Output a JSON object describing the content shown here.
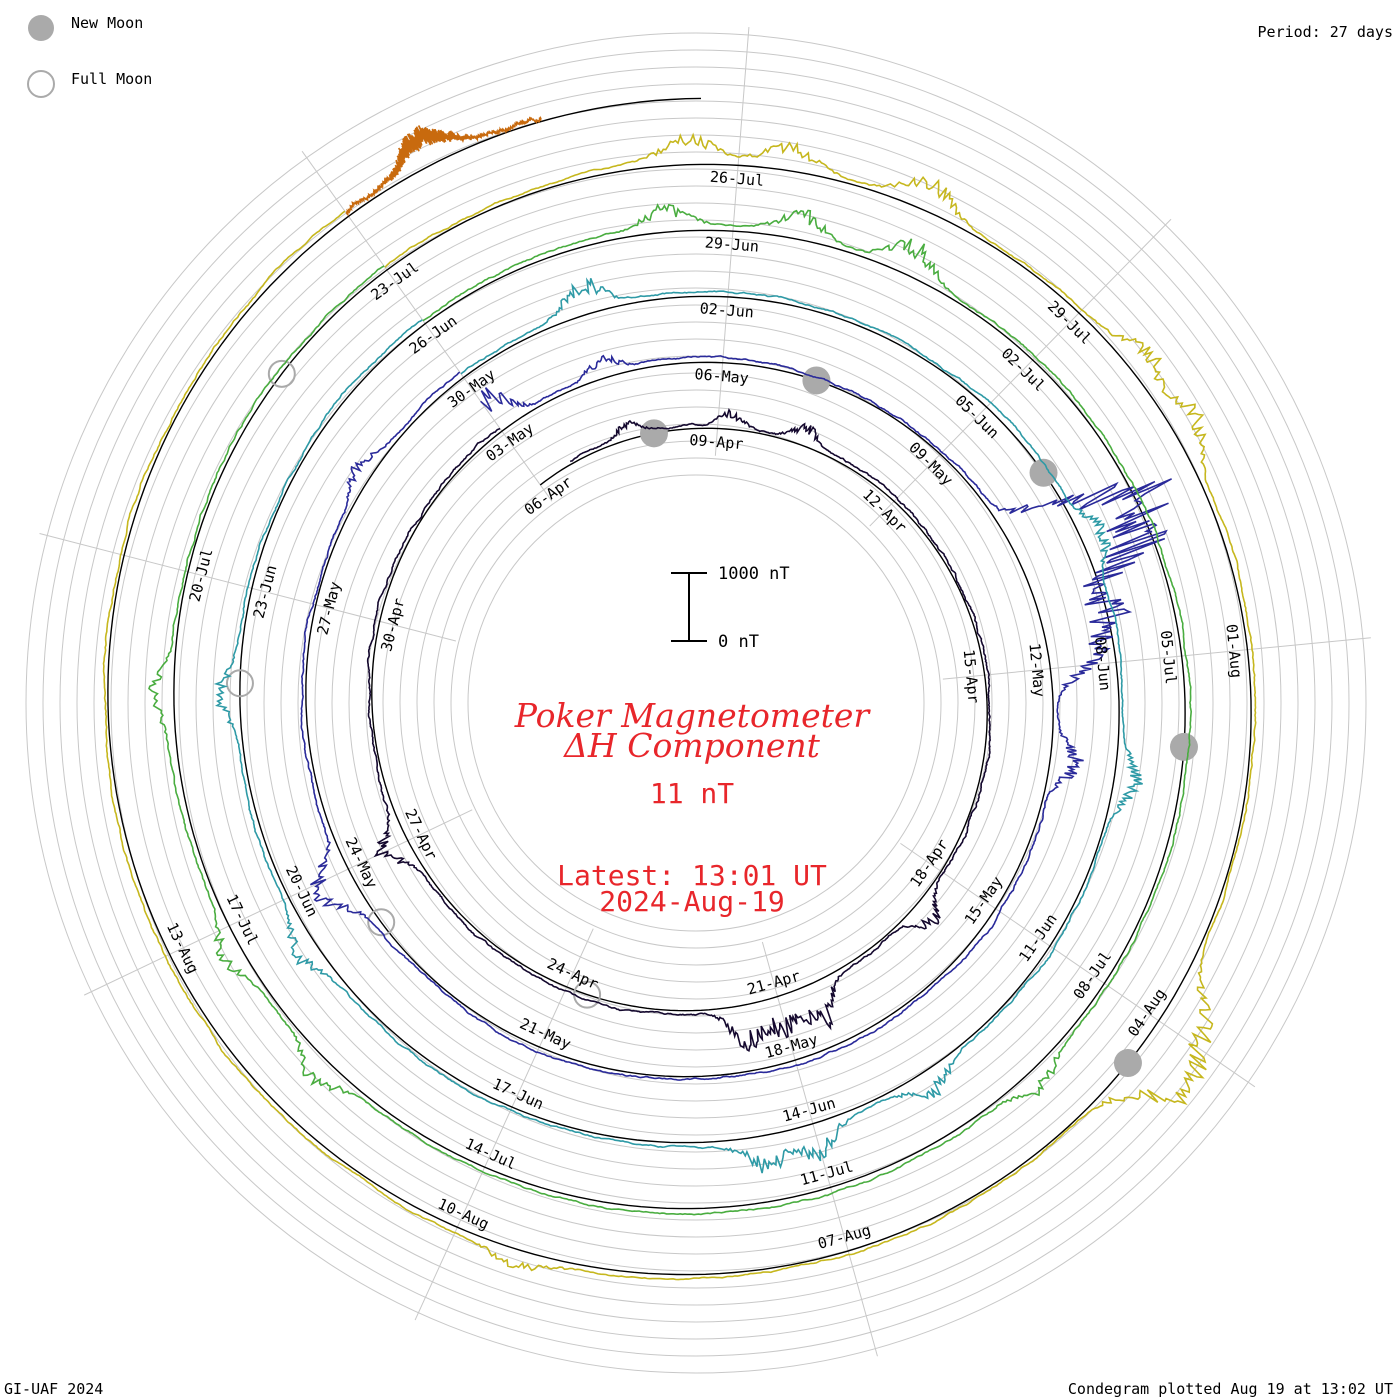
{
  "header": {
    "legend_new_moon": "New Moon",
    "legend_full_moon": "Full Moon",
    "period": "Period: 27 days"
  },
  "footer": {
    "credit": "GI-UAF 2024",
    "plotted": "Condegram plotted Aug 19 at 13:02 UT"
  },
  "center": {
    "title_line1": "Poker Magnetometer",
    "title_line2": "ΔH Component",
    "value": "11 nT",
    "latest_time": "Latest: 13:01 UT",
    "latest_date": "2024-Aug-19",
    "scale_top": "1000 nT",
    "scale_bottom": "0 nT"
  },
  "colors": {
    "moon_fill": "#aaaaaa",
    "title": "#e8262b",
    "grid": "#c8c8c8",
    "axis": "#000000",
    "cycles": [
      "#14082e",
      "#2a2a9a",
      "#2e9aa6",
      "#4aad40",
      "#c6b71e",
      "#c86a0e",
      "#b51a10"
    ]
  },
  "chart_data": {
    "type": "line",
    "title": "Poker Magnetometer ΔH Component",
    "period_days": 27,
    "y_scale_nT": [
      0,
      1000
    ],
    "current_value_nT": 11,
    "date_labels": [
      {
        "text": "06-Apr",
        "cycle": 0,
        "day": 0
      },
      {
        "text": "09-Apr",
        "cycle": 0,
        "day": 3
      },
      {
        "text": "12-Apr",
        "cycle": 0,
        "day": 6
      },
      {
        "text": "15-Apr",
        "cycle": 0,
        "day": 9
      },
      {
        "text": "18-Apr",
        "cycle": 0,
        "day": 12
      },
      {
        "text": "21-Apr",
        "cycle": 0,
        "day": 15
      },
      {
        "text": "24-Apr",
        "cycle": 0,
        "day": 18
      },
      {
        "text": "27-Apr",
        "cycle": 0,
        "day": 21
      },
      {
        "text": "30-Apr",
        "cycle": 0,
        "day": 24
      },
      {
        "text": "03-May",
        "cycle": 1,
        "day": 0
      },
      {
        "text": "06-May",
        "cycle": 1,
        "day": 3
      },
      {
        "text": "09-May",
        "cycle": 1,
        "day": 6
      },
      {
        "text": "12-May",
        "cycle": 1,
        "day": 9
      },
      {
        "text": "15-May",
        "cycle": 1,
        "day": 12
      },
      {
        "text": "18-May",
        "cycle": 1,
        "day": 15
      },
      {
        "text": "21-May",
        "cycle": 1,
        "day": 18
      },
      {
        "text": "24-May",
        "cycle": 1,
        "day": 21
      },
      {
        "text": "27-May",
        "cycle": 1,
        "day": 24
      },
      {
        "text": "30-May",
        "cycle": 2,
        "day": 0
      },
      {
        "text": "02-Jun",
        "cycle": 2,
        "day": 3
      },
      {
        "text": "05-Jun",
        "cycle": 2,
        "day": 6
      },
      {
        "text": "08-Jun",
        "cycle": 2,
        "day": 9
      },
      {
        "text": "11-Jun",
        "cycle": 2,
        "day": 12
      },
      {
        "text": "14-Jun",
        "cycle": 2,
        "day": 15
      },
      {
        "text": "17-Jun",
        "cycle": 2,
        "day": 18
      },
      {
        "text": "20-Jun",
        "cycle": 2,
        "day": 21
      },
      {
        "text": "23-Jun",
        "cycle": 2,
        "day": 24
      },
      {
        "text": "26-Jun",
        "cycle": 3,
        "day": 0
      },
      {
        "text": "29-Jun",
        "cycle": 3,
        "day": 3
      },
      {
        "text": "02-Jul",
        "cycle": 3,
        "day": 6
      },
      {
        "text": "05-Jul",
        "cycle": 3,
        "day": 9
      },
      {
        "text": "08-Jul",
        "cycle": 3,
        "day": 12
      },
      {
        "text": "11-Jul",
        "cycle": 3,
        "day": 15
      },
      {
        "text": "14-Jul",
        "cycle": 3,
        "day": 18
      },
      {
        "text": "17-Jul",
        "cycle": 3,
        "day": 21
      },
      {
        "text": "20-Jul",
        "cycle": 3,
        "day": 24
      },
      {
        "text": "23-Jul",
        "cycle": 4,
        "day": 0
      },
      {
        "text": "26-Jul",
        "cycle": 4,
        "day": 3
      },
      {
        "text": "29-Jul",
        "cycle": 4,
        "day": 6
      },
      {
        "text": "01-Aug",
        "cycle": 4,
        "day": 9
      },
      {
        "text": "04-Aug",
        "cycle": 4,
        "day": 12
      },
      {
        "text": "07-Aug",
        "cycle": 4,
        "day": 15
      },
      {
        "text": "10-Aug",
        "cycle": 4,
        "day": 18
      },
      {
        "text": "13-Aug",
        "cycle": 4,
        "day": 21
      }
    ],
    "new_moons": [
      {
        "cycle": 0,
        "day": 2.0
      },
      {
        "cycle": 1,
        "day": 4.2
      },
      {
        "cycle": 2,
        "day": 6.9
      },
      {
        "cycle": 3,
        "day": 9.8
      },
      {
        "cycle": 4,
        "day": 12.4
      }
    ],
    "full_moons": [
      {
        "cycle": 0,
        "day": 17.7
      },
      {
        "cycle": 1,
        "day": 20.3
      },
      {
        "cycle": 2,
        "day": 23.1
      },
      {
        "cycle": 3,
        "day": 25.8
      }
    ],
    "cycles": [
      {
        "start": "2024-04-05",
        "day_start": 0.6,
        "day_end": 27,
        "baseline_nT": 50,
        "disturbances": [
          [
            1.6,
            150
          ],
          [
            3.2,
            180
          ],
          [
            4.3,
            200
          ],
          [
            12.6,
            330
          ],
          [
            14.5,
            500
          ],
          [
            15.0,
            420
          ],
          [
            15.5,
            450
          ],
          [
            21.0,
            320
          ]
        ]
      },
      {
        "start": "2024-05-02",
        "day_start": 0,
        "day_end": 27,
        "baseline_nT": 60,
        "disturbances": [
          [
            0.1,
            450
          ],
          [
            1.5,
            200
          ],
          [
            7.4,
            1300
          ],
          [
            7.7,
            1400
          ],
          [
            8.0,
            1100
          ],
          [
            8.5,
            900
          ],
          [
            8.9,
            600
          ],
          [
            10.1,
            350
          ],
          [
            20.8,
            280
          ],
          [
            21.0,
            300
          ],
          [
            25.5,
            180
          ]
        ]
      },
      {
        "start": "2024-05-29",
        "day_start": 0,
        "day_end": 27,
        "baseline_nT": 70,
        "disturbances": [
          [
            1.5,
            380
          ],
          [
            7.7,
            300
          ],
          [
            10.2,
            270
          ],
          [
            13.8,
            280
          ],
          [
            15.0,
            350
          ],
          [
            15.5,
            360
          ],
          [
            20.5,
            250
          ],
          [
            23.0,
            240
          ]
        ]
      },
      {
        "start": "2024-06-25",
        "day_start": 0,
        "day_end": 27,
        "baseline_nT": 65,
        "disturbances": [
          [
            2.4,
            260
          ],
          [
            3.6,
            270
          ],
          [
            4.6,
            360
          ],
          [
            13.0,
            230
          ],
          [
            19.6,
            250
          ],
          [
            20.8,
            230
          ],
          [
            23.0,
            210
          ]
        ]
      },
      {
        "start": "2024-07-22",
        "day_start": 0,
        "day_end": 27,
        "baseline_nT": 55,
        "disturbances": [
          [
            2.6,
            300
          ],
          [
            3.4,
            250
          ],
          [
            4.5,
            340
          ],
          [
            6.6,
            300
          ],
          [
            7.2,
            320
          ],
          [
            11.8,
            320
          ],
          [
            12.1,
            600
          ],
          [
            12.4,
            550
          ],
          [
            17.5,
            180
          ]
        ]
      },
      {
        "start": "2024-08-18",
        "day_start": 0,
        "day_end": 1.55,
        "baseline_nT": 55,
        "disturbances": [
          [
            0.7,
            380
          ]
        ]
      }
    ]
  }
}
